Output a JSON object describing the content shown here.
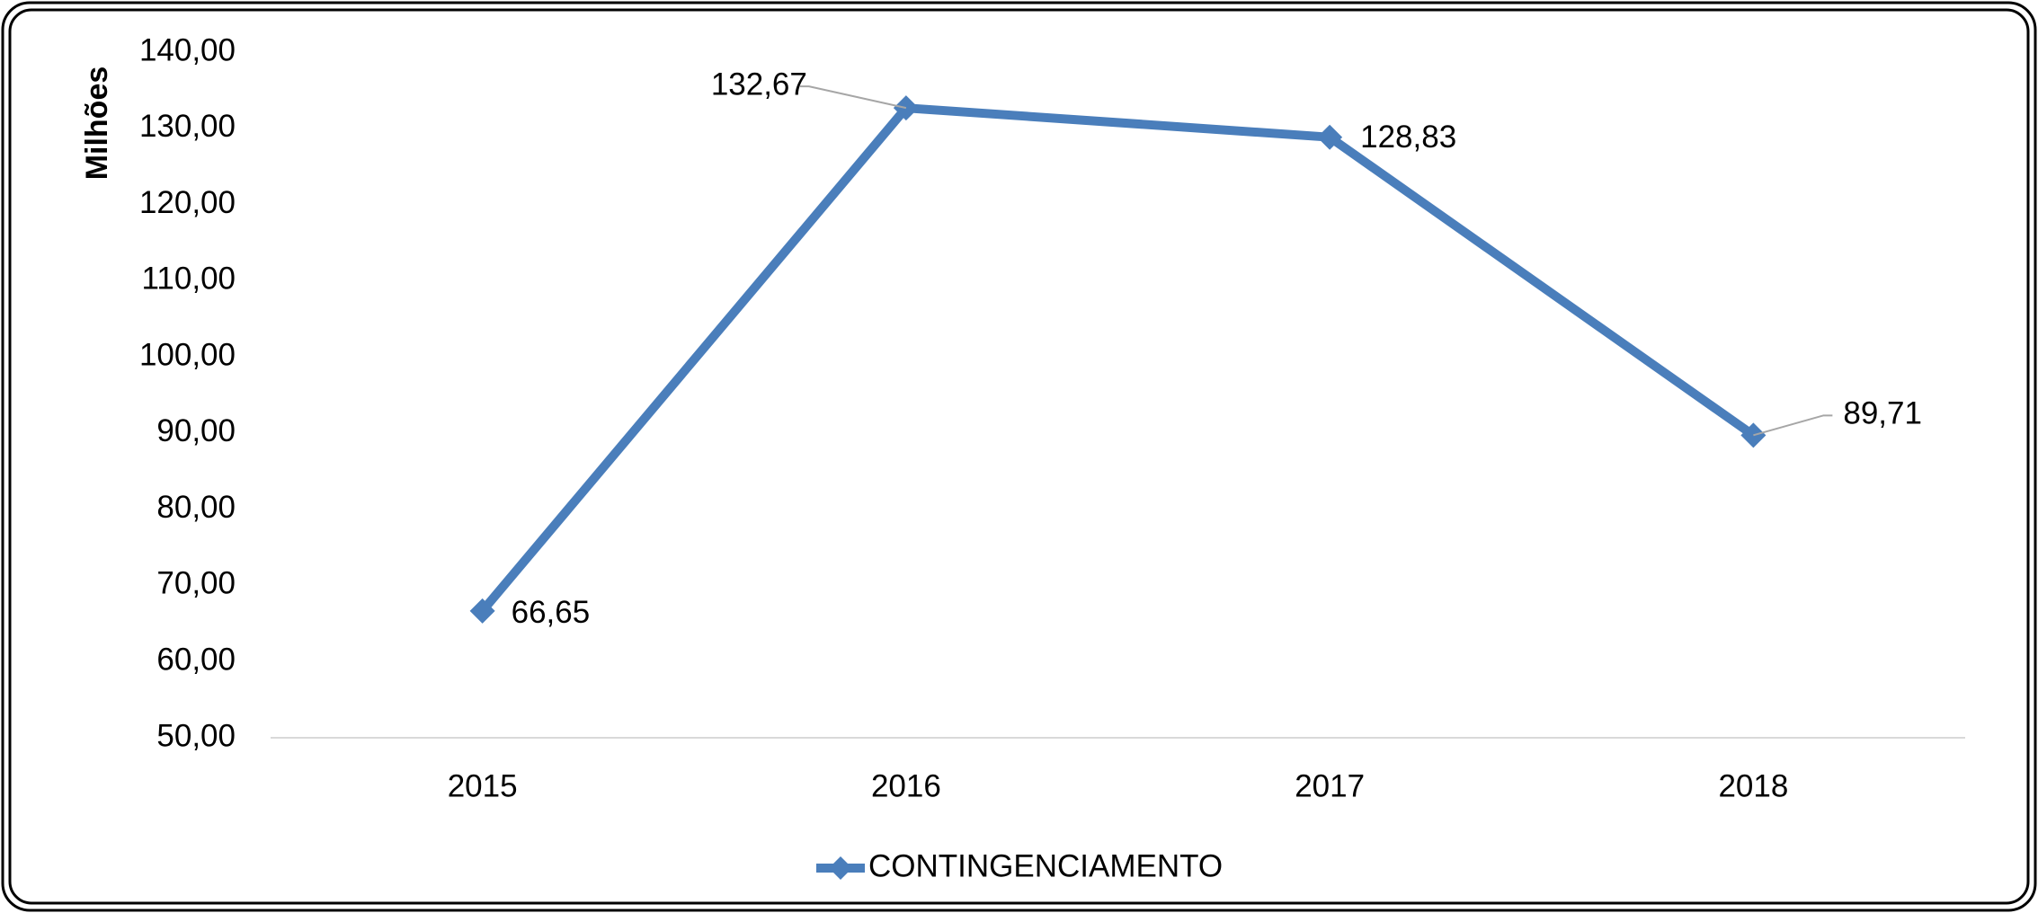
{
  "chart_data": {
    "type": "line",
    "y_axis_label": "Milhões",
    "categories": [
      "2015",
      "2016",
      "2017",
      "2018"
    ],
    "series": [
      {
        "name": "CONTINGENCIAMENTO",
        "color": "#4a7ebb",
        "values": [
          66.65,
          132.67,
          128.83,
          89.71
        ],
        "value_labels": [
          "66,65",
          "132,67",
          "128,83",
          "89,71"
        ]
      }
    ],
    "ylim": [
      50,
      140
    ],
    "yticks": [
      {
        "value": 50,
        "label": "50,00"
      },
      {
        "value": 60,
        "label": "60,00"
      },
      {
        "value": 70,
        "label": "70,00"
      },
      {
        "value": 80,
        "label": "80,00"
      },
      {
        "value": 90,
        "label": "90,00"
      },
      {
        "value": 100,
        "label": "100,00"
      },
      {
        "value": 110,
        "label": "110,00"
      },
      {
        "value": 120,
        "label": "120,00"
      },
      {
        "value": 130,
        "label": "130,00"
      },
      {
        "value": 140,
        "label": "140,00"
      }
    ],
    "grid": false,
    "legend": "bottom"
  }
}
